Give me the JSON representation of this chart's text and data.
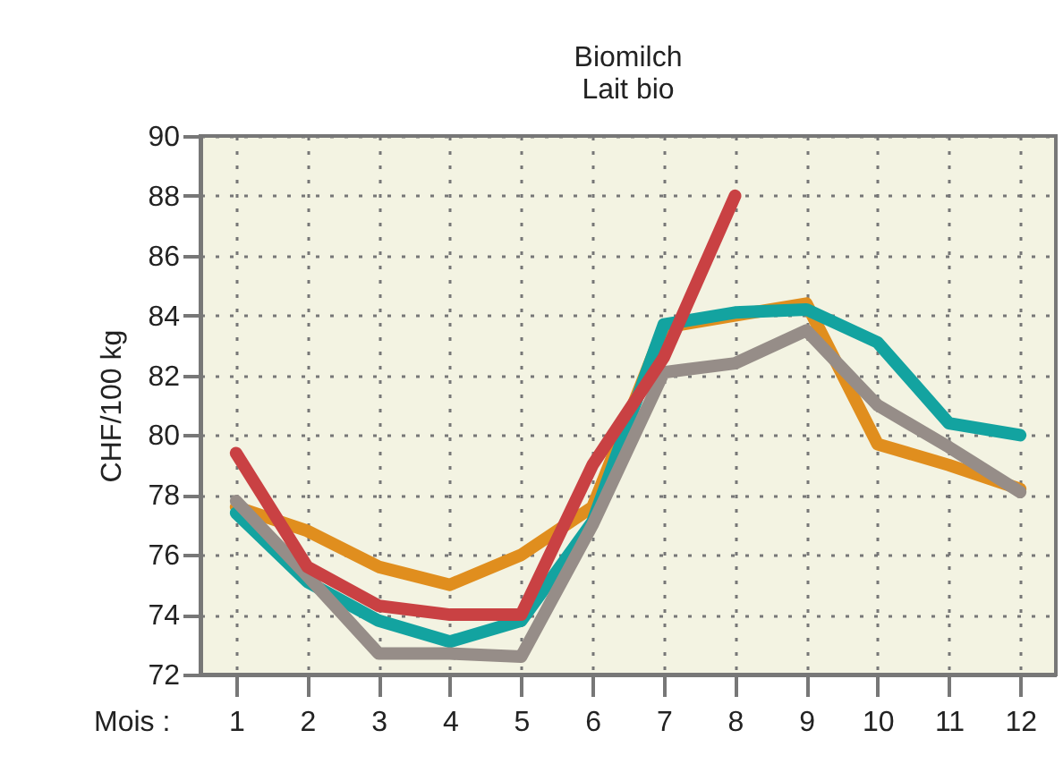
{
  "chart_data": {
    "type": "line",
    "title": "Biomilch",
    "subtitle": "Lait bio",
    "xlabel": "Mois :",
    "ylabel": "CHF/100 kg",
    "x": [
      1,
      2,
      3,
      4,
      5,
      6,
      7,
      8,
      9,
      10,
      11,
      12
    ],
    "xlim": [
      0.5,
      12.5
    ],
    "xticks": [
      1,
      2,
      3,
      4,
      5,
      6,
      7,
      8,
      9,
      10,
      11,
      12
    ],
    "series": [
      {
        "color": "#e08e1e",
        "values": [
          77.6,
          76.8,
          75.6,
          75.0,
          76.0,
          77.6,
          83.6,
          84.0,
          84.4,
          79.7,
          79.0,
          78.2
        ]
      },
      {
        "color": "#13a3a0",
        "values": [
          77.4,
          75.1,
          73.8,
          73.1,
          73.8,
          77.1,
          83.7,
          84.1,
          84.2,
          83.1,
          80.4,
          80.0
        ]
      },
      {
        "color": "#968d88",
        "values": [
          77.8,
          75.3,
          72.7,
          72.7,
          72.6,
          77.0,
          82.1,
          82.4,
          83.5,
          81.0,
          79.6,
          78.1
        ]
      },
      {
        "color": "#c94143",
        "values": [
          79.4,
          75.6,
          74.3,
          74.0,
          74.0,
          79.0,
          82.6,
          88.0,
          null,
          null,
          null,
          null
        ]
      }
    ],
    "ylim": [
      72,
      90
    ],
    "yticks": [
      72,
      74,
      76,
      78,
      80,
      82,
      84,
      86,
      88,
      90
    ],
    "grid": true,
    "legend": false,
    "marker": "none",
    "line_style": "solid"
  }
}
